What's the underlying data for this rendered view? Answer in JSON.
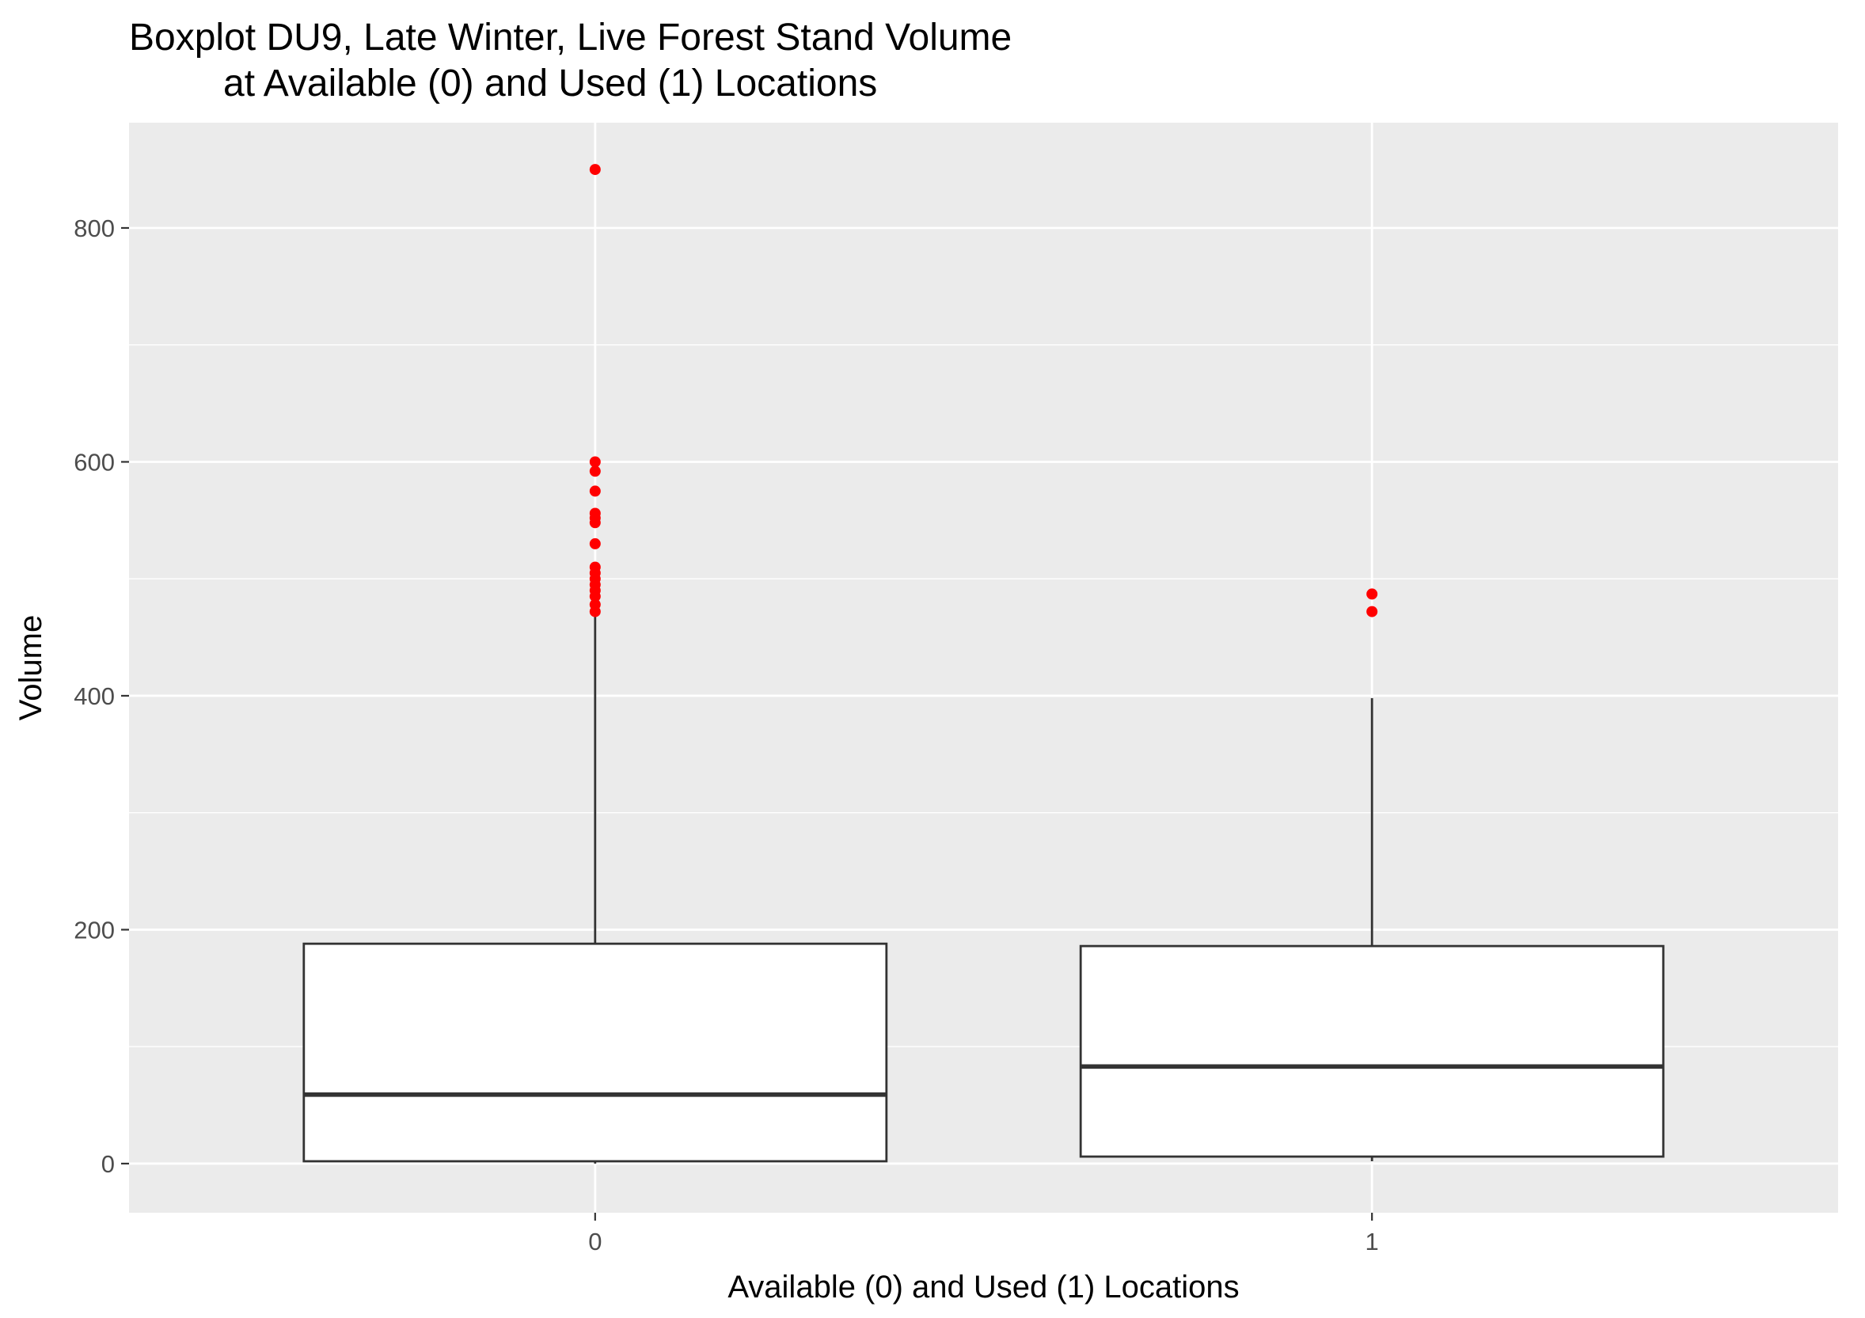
{
  "chart_data": {
    "type": "boxplot",
    "title": [
      "Boxplot DU9, Late Winter, Live Forest Stand Volume",
      "at Available (0) and Used (1) Locations"
    ],
    "xlabel": "Available (0) and Used (1) Locations",
    "ylabel": "Volume",
    "categories": [
      "0",
      "1"
    ],
    "ylim": [
      -42,
      890
    ],
    "yticks": [
      0,
      200,
      400,
      600,
      800
    ],
    "grid": true,
    "boxes": [
      {
        "category": "0",
        "min": 0,
        "q1": 2,
        "median": 59,
        "q3": 188,
        "max": 470,
        "outliers": [
          850,
          600,
          592,
          575,
          556,
          552,
          548,
          530,
          510,
          505,
          500,
          495,
          490,
          485,
          478,
          472
        ]
      },
      {
        "category": "1",
        "min": 2,
        "q1": 6,
        "median": 83,
        "q3": 186,
        "max": 398,
        "outliers": [
          487,
          472
        ]
      }
    ],
    "colors": {
      "panel": "#EBEBEB",
      "grid": "#FFFFFF",
      "box_fill": "#FFFFFF",
      "box_line": "#333333",
      "outlier": "#FF0000",
      "tick_text": "#4D4D4D"
    }
  }
}
